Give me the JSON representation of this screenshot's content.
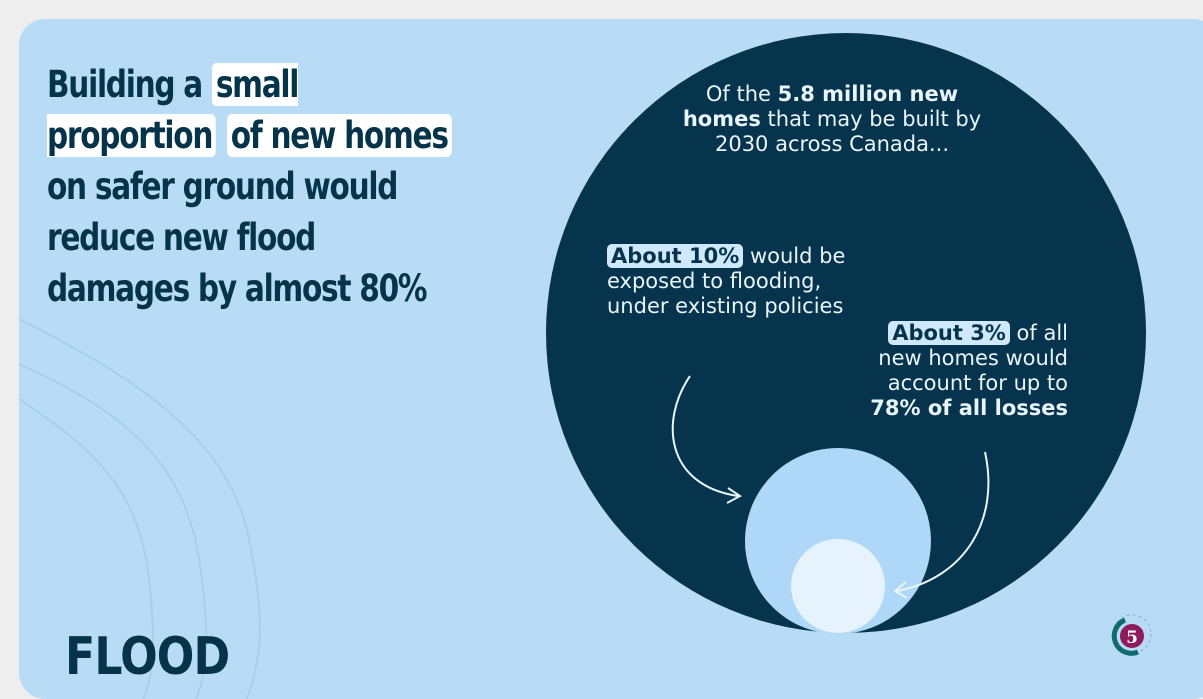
{
  "headline": {
    "part1": "Building a ",
    "highlight1": "small proportion",
    "highlight2": "of new homes",
    "part2": " on safer ground would reduce new flood damages by almost 80%"
  },
  "brand": {
    "label": "FLOOD"
  },
  "diagram": {
    "outer_text": {
      "pre": "Of the ",
      "bold": "5.8 million new homes",
      "post": " that may be built by 2030 across Canada..."
    },
    "middle_text": {
      "badge": "About 10%",
      "rest": " would be exposed to flooding, under existing policies"
    },
    "inner_text": {
      "badge": "About 3%",
      "mid": " of all new homes would account for up to ",
      "bold": "78% of all losses"
    },
    "colors": {
      "outer": "#05344c",
      "middle": "#aed7f8",
      "inner": "#e6f3fd",
      "background": "#b9dcf6"
    }
  },
  "logo": {
    "number": "5",
    "icon": "circle-five-logo-icon"
  }
}
